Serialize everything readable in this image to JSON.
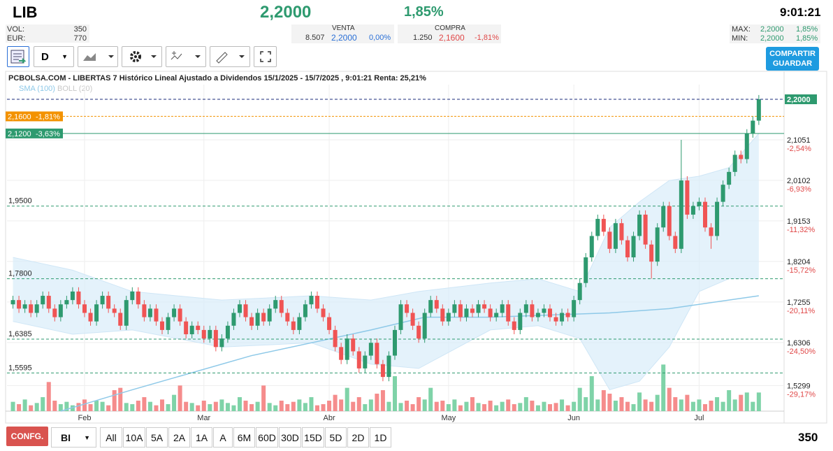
{
  "header": {
    "ticker": "LIB",
    "price": "2,2000",
    "change": "1,85%",
    "time": "9:01:21",
    "vol_label": "VOL:",
    "vol": "350",
    "eur_label": "EUR:",
    "eur": "770",
    "venta": {
      "label": "VENTA",
      "qty": "8.507",
      "price": "2,2000",
      "pct": "0,00%"
    },
    "compra": {
      "label": "COMPRA",
      "qty": "1.250",
      "price": "2,1600",
      "pct": "-1,81%"
    },
    "max": {
      "label": "MAX:",
      "price": "2,2000",
      "pct": "1,85%"
    },
    "min": {
      "label": "MIN:",
      "price": "2,2000",
      "pct": "1,85%"
    }
  },
  "toolbar": {
    "period": "D",
    "share": "COMPARTIR",
    "save": "GUARDAR"
  },
  "chart_data": {
    "type": "candlestick",
    "title": "PCBOLSA.COM - LIBERTAS 7 Histórico Lineal Ajustado a Dividendos 15/1/2025 - 15/7/2025 , 9:01:21 Renta: 25,21%",
    "up_color": "#2e9a6f",
    "down_color": "#f05454",
    "xlim": [
      -1,
      129
    ],
    "ylim": [
      1.47,
      2.236
    ],
    "xticks": [
      {
        "value": 12,
        "label": "Feb"
      },
      {
        "value": 32,
        "label": "Mar"
      },
      {
        "value": 53,
        "label": "Abr"
      },
      {
        "value": 73,
        "label": "May"
      },
      {
        "value": 94,
        "label": "Jun"
      },
      {
        "value": 115,
        "label": "Jul"
      }
    ],
    "yticks": [
      {
        "value": 2.1051,
        "label": "2,1051"
      },
      {
        "value": 2.0102,
        "label": "2,0102"
      },
      {
        "value": 1.9153,
        "label": "1,9153"
      },
      {
        "value": 1.8204,
        "label": "1,8204"
      },
      {
        "value": 1.7255,
        "label": "1,7255"
      },
      {
        "value": 1.6306,
        "label": "1,6306"
      },
      {
        "value": 1.5299,
        "label": "1,5299"
      }
    ],
    "ytick_changes": [
      "-2,54%",
      "-6,93%",
      "-11,32%",
      "-15,72%",
      "-20,11%",
      "-24,50%",
      "-29,17%"
    ],
    "last_price": {
      "value": 2.2,
      "label": "2,2000"
    },
    "levels": [
      {
        "value": 2.16,
        "label": "2,1600",
        "change": "-1,81%",
        "color": "#f39200"
      },
      {
        "value": 2.12,
        "label": "2,1200",
        "change": "-3,63%",
        "color": "#2e9a6f"
      },
      {
        "value": 1.95,
        "label": "1,9500"
      },
      {
        "value": 1.78,
        "label": "1,7800"
      },
      {
        "value": 1.6385,
        "label": "1,6385"
      },
      {
        "value": 1.5595,
        "label": "1,5595"
      }
    ],
    "open": [
      1.72,
      1.73,
      1.71,
      1.72,
      1.7,
      1.72,
      1.74,
      1.71,
      1.69,
      1.72,
      1.73,
      1.75,
      1.72,
      1.7,
      1.68,
      1.72,
      1.74,
      1.71,
      1.7,
      1.67,
      1.73,
      1.75,
      1.72,
      1.69,
      1.71,
      1.68,
      1.66,
      1.69,
      1.71,
      1.68,
      1.65,
      1.67,
      1.66,
      1.64,
      1.66,
      1.62,
      1.64,
      1.67,
      1.7,
      1.72,
      1.69,
      1.67,
      1.7,
      1.68,
      1.71,
      1.73,
      1.7,
      1.68,
      1.66,
      1.69,
      1.72,
      1.74,
      1.71,
      1.69,
      1.66,
      1.62,
      1.59,
      1.64,
      1.61,
      1.57,
      1.6,
      1.63,
      1.58,
      1.55,
      1.6,
      1.66,
      1.72,
      1.7,
      1.67,
      1.64,
      1.7,
      1.73,
      1.71,
      1.68,
      1.7,
      1.72,
      1.69,
      1.71,
      1.7,
      1.72,
      1.71,
      1.69,
      1.7,
      1.72,
      1.68,
      1.66,
      1.7,
      1.72,
      1.69,
      1.7,
      1.71,
      1.69,
      1.68,
      1.7,
      1.69,
      1.73,
      1.77,
      1.83,
      1.88,
      1.92,
      1.89,
      1.85,
      1.91,
      1.87,
      1.83,
      1.88,
      1.93,
      1.86,
      1.82,
      1.9,
      1.95,
      1.88,
      1.85,
      2.01,
      1.93,
      1.95,
      1.96,
      1.9,
      1.88,
      1.96,
      2.0,
      2.03,
      2.07,
      2.06,
      2.12,
      2.15
    ],
    "high": [
      1.74,
      1.74,
      1.73,
      1.73,
      1.73,
      1.75,
      1.75,
      1.72,
      1.73,
      1.74,
      1.76,
      1.76,
      1.73,
      1.71,
      1.73,
      1.75,
      1.75,
      1.72,
      1.71,
      1.74,
      1.76,
      1.76,
      1.73,
      1.72,
      1.72,
      1.69,
      1.7,
      1.72,
      1.72,
      1.69,
      1.68,
      1.68,
      1.67,
      1.67,
      1.67,
      1.65,
      1.68,
      1.71,
      1.73,
      1.73,
      1.7,
      1.71,
      1.71,
      1.72,
      1.74,
      1.74,
      1.71,
      1.69,
      1.7,
      1.73,
      1.75,
      1.75,
      1.72,
      1.7,
      1.67,
      1.63,
      1.65,
      1.65,
      1.62,
      1.61,
      1.64,
      1.64,
      1.59,
      1.61,
      1.67,
      1.73,
      1.73,
      1.71,
      1.68,
      1.71,
      1.74,
      1.74,
      1.72,
      1.71,
      1.73,
      1.73,
      1.72,
      1.72,
      1.73,
      1.73,
      1.72,
      1.71,
      1.73,
      1.73,
      1.69,
      1.71,
      1.73,
      1.73,
      1.71,
      1.72,
      1.72,
      1.7,
      1.71,
      1.71,
      1.74,
      1.78,
      1.84,
      1.89,
      1.93,
      1.93,
      1.9,
      1.92,
      1.92,
      1.88,
      1.89,
      1.94,
      1.94,
      1.87,
      1.91,
      1.96,
      1.96,
      1.89,
      2.105,
      2.02,
      1.96,
      1.97,
      1.97,
      1.91,
      1.97,
      2.01,
      2.04,
      2.08,
      2.08,
      2.13,
      2.16,
      2.21
    ],
    "low": [
      1.71,
      1.7,
      1.7,
      1.69,
      1.69,
      1.71,
      1.7,
      1.68,
      1.68,
      1.71,
      1.72,
      1.71,
      1.69,
      1.67,
      1.67,
      1.71,
      1.7,
      1.69,
      1.66,
      1.66,
      1.72,
      1.71,
      1.68,
      1.68,
      1.67,
      1.65,
      1.65,
      1.68,
      1.67,
      1.64,
      1.64,
      1.65,
      1.63,
      1.63,
      1.61,
      1.61,
      1.63,
      1.66,
      1.69,
      1.68,
      1.66,
      1.66,
      1.67,
      1.67,
      1.7,
      1.69,
      1.67,
      1.65,
      1.65,
      1.68,
      1.71,
      1.7,
      1.68,
      1.65,
      1.61,
      1.58,
      1.58,
      1.6,
      1.56,
      1.56,
      1.59,
      1.57,
      1.54,
      1.54,
      1.59,
      1.65,
      1.69,
      1.66,
      1.63,
      1.63,
      1.69,
      1.7,
      1.67,
      1.67,
      1.69,
      1.68,
      1.68,
      1.69,
      1.69,
      1.7,
      1.68,
      1.68,
      1.69,
      1.67,
      1.65,
      1.65,
      1.69,
      1.68,
      1.68,
      1.69,
      1.68,
      1.67,
      1.67,
      1.68,
      1.68,
      1.72,
      1.76,
      1.82,
      1.87,
      1.88,
      1.84,
      1.84,
      1.86,
      1.82,
      1.82,
      1.87,
      1.85,
      1.78,
      1.81,
      1.89,
      1.87,
      1.84,
      1.84,
      1.92,
      1.92,
      1.94,
      1.89,
      1.85,
      1.87,
      1.95,
      1.99,
      2.02,
      2.05,
      2.05,
      2.11,
      2.14
    ],
    "close": [
      1.73,
      1.71,
      1.72,
      1.7,
      1.72,
      1.74,
      1.71,
      1.69,
      1.72,
      1.73,
      1.75,
      1.72,
      1.7,
      1.68,
      1.72,
      1.74,
      1.71,
      1.7,
      1.67,
      1.73,
      1.75,
      1.72,
      1.69,
      1.71,
      1.68,
      1.66,
      1.69,
      1.71,
      1.68,
      1.65,
      1.67,
      1.66,
      1.64,
      1.66,
      1.62,
      1.64,
      1.67,
      1.7,
      1.72,
      1.69,
      1.67,
      1.7,
      1.68,
      1.71,
      1.73,
      1.7,
      1.68,
      1.66,
      1.69,
      1.72,
      1.74,
      1.71,
      1.69,
      1.66,
      1.62,
      1.59,
      1.64,
      1.61,
      1.57,
      1.6,
      1.63,
      1.58,
      1.55,
      1.6,
      1.66,
      1.72,
      1.7,
      1.67,
      1.64,
      1.7,
      1.73,
      1.71,
      1.68,
      1.7,
      1.72,
      1.69,
      1.71,
      1.7,
      1.72,
      1.71,
      1.69,
      1.7,
      1.72,
      1.68,
      1.66,
      1.7,
      1.72,
      1.69,
      1.7,
      1.71,
      1.69,
      1.68,
      1.7,
      1.69,
      1.73,
      1.77,
      1.83,
      1.88,
      1.92,
      1.89,
      1.85,
      1.91,
      1.87,
      1.83,
      1.88,
      1.93,
      1.86,
      1.82,
      1.9,
      1.95,
      1.88,
      1.85,
      2.01,
      1.93,
      1.95,
      1.96,
      1.9,
      1.88,
      1.96,
      2.0,
      2.03,
      2.07,
      2.06,
      2.12,
      2.15,
      2.2
    ],
    "volume_ylim": [
      0,
      60
    ],
    "volume": [
      8,
      6,
      10,
      5,
      7,
      12,
      25,
      9,
      6,
      8,
      5,
      7,
      10,
      6,
      9,
      8,
      5,
      18,
      20,
      7,
      6,
      9,
      12,
      8,
      5,
      10,
      6,
      14,
      22,
      8,
      7,
      5,
      9,
      6,
      8,
      10,
      7,
      5,
      12,
      9,
      6,
      8,
      22,
      7,
      5,
      9,
      6,
      8,
      10,
      7,
      12,
      5,
      6,
      9,
      14,
      10,
      20,
      8,
      12,
      6,
      10,
      15,
      18,
      8,
      30,
      7,
      9,
      6,
      12,
      10,
      20,
      8,
      9,
      6,
      10,
      5,
      8,
      12,
      7,
      6,
      9,
      5,
      8,
      10,
      6,
      7,
      12,
      9,
      5,
      8,
      6,
      7,
      10,
      5,
      8,
      20,
      12,
      30,
      10,
      18,
      15,
      9,
      12,
      8,
      6,
      16,
      10,
      8,
      14,
      40,
      20,
      12,
      10,
      14,
      8,
      10,
      6,
      9,
      12,
      8,
      18,
      10,
      14,
      16,
      8,
      16
    ],
    "sma": {
      "name": "SMA (100)",
      "color": "#8ec9e8",
      "x": [
        8,
        20,
        40,
        60,
        69,
        80,
        100,
        110,
        125
      ],
      "values": [
        1.47,
        1.52,
        1.6,
        1.66,
        1.69,
        1.69,
        1.7,
        1.71,
        1.74
      ]
    },
    "boll": {
      "name": "BOLL (20)",
      "color": "#c8c8c8",
      "fill": "#d9edfa",
      "x": [
        0,
        10,
        20,
        35,
        50,
        60,
        68,
        80,
        88,
        95,
        100,
        105,
        110,
        115,
        120,
        125
      ],
      "upper": [
        1.83,
        1.8,
        1.75,
        1.73,
        1.74,
        1.73,
        1.75,
        1.77,
        1.78,
        1.75,
        1.9,
        1.96,
        2.01,
        2.02,
        2.04,
        2.12
      ],
      "lower": [
        1.68,
        1.65,
        1.66,
        1.62,
        1.63,
        1.58,
        1.57,
        1.66,
        1.67,
        1.64,
        1.52,
        1.54,
        1.62,
        1.75,
        1.78,
        1.78
      ]
    }
  },
  "footer": {
    "config": "CONFG.",
    "mode": "BI",
    "ranges": [
      "All",
      "10A",
      "5A",
      "2A",
      "1A",
      "A",
      "6M",
      "60D",
      "30D",
      "15D",
      "5D",
      "2D",
      "1D"
    ],
    "volume": "350"
  }
}
